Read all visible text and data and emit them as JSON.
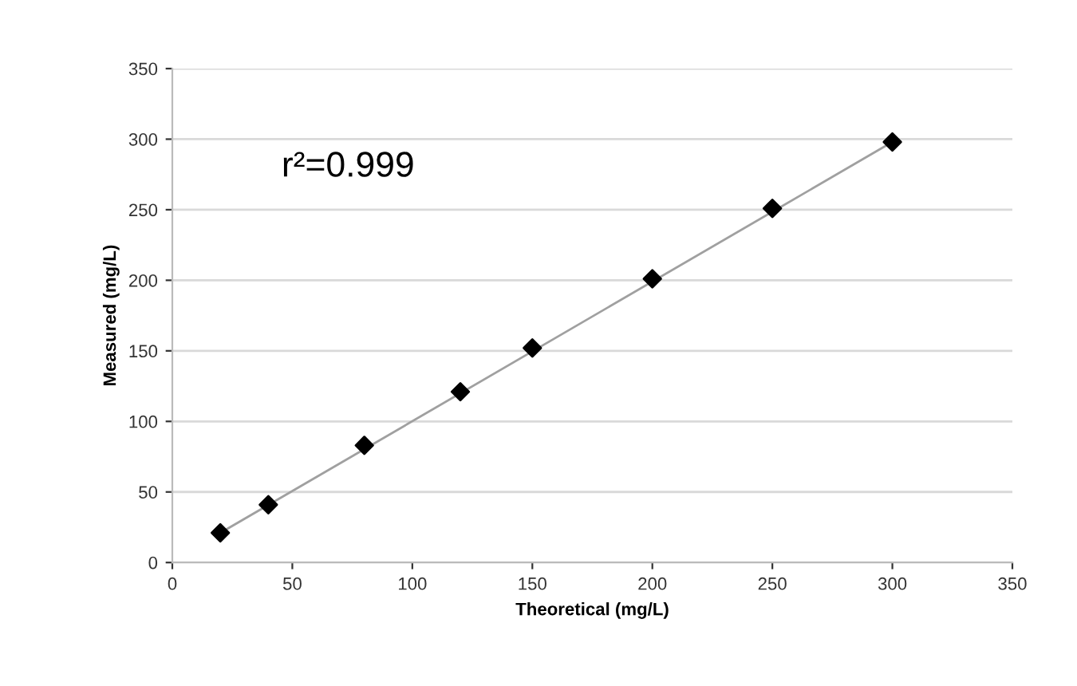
{
  "chart_data": {
    "type": "scatter",
    "xlabel": "Theoretical (mg/L)",
    "ylabel": "Measured (mg/L)",
    "x": [
      20,
      40,
      80,
      120,
      150,
      200,
      250,
      300
    ],
    "series": [
      {
        "color": "#000000",
        "marker": "diamond",
        "values": [
          21,
          41,
          83,
          121,
          152,
          201,
          251,
          298
        ]
      },
      {
        "type": "line",
        "color": "#a0a0a0",
        "x": [
          20,
          300
        ],
        "values": [
          21,
          298
        ],
        "marker": "none",
        "line_style": "solid"
      }
    ],
    "xlim": [
      0,
      350
    ],
    "xticks": [
      0,
      50,
      100,
      150,
      200,
      250,
      300,
      350
    ],
    "ylim": [
      0,
      350
    ],
    "yticks": [
      0,
      50,
      100,
      150,
      200,
      250,
      300,
      350
    ],
    "grid": "y",
    "annotations": [
      "r²=0.999"
    ]
  }
}
